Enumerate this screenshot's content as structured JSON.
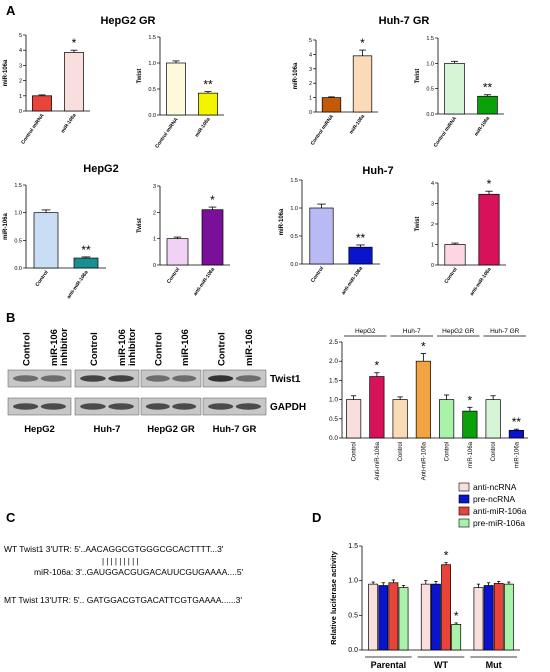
{
  "panel_letters": {
    "A": "A",
    "B": "B",
    "C": "C",
    "D": "D"
  },
  "group_titles": {
    "hepg2_gr": "HepG2 GR",
    "huh7_gr": "Huh-7 GR",
    "hepg2": "HepG2",
    "huh7": "Huh-7"
  },
  "colors": {
    "red": "#e8443a",
    "pink": "#f9dede",
    "cream": "#fcf9dc",
    "yellow": "#f3f300",
    "brown": "#c35a07",
    "peach": "#fbdab8",
    "mint": "#d6f5d6",
    "green": "#0aa10a",
    "lightblue": "#c9def4",
    "teal": "#1a8f92",
    "lavender": "#f1d2f5",
    "purple": "#7a0f9a",
    "periwinkle": "#b9b9f4",
    "blue": "#0a14cc",
    "rose": "#fcd6e2",
    "crimson": "#d8125a",
    "orange": "#f2a442",
    "lightgreen": "#a9f2a9",
    "blot_bg": "#c7c7c7"
  },
  "blot": {
    "lanes": [
      {
        "group": "HepG2",
        "labels": [
          "Control",
          "miR-106 inhibitor"
        ]
      },
      {
        "group": "Huh-7",
        "labels": [
          "Control",
          "miR-106 inhibitor"
        ]
      },
      {
        "group": "HepG2 GR",
        "labels": [
          "Control",
          "miR-106"
        ]
      },
      {
        "group": "Huh-7 GR",
        "labels": [
          "Control",
          "miR-106"
        ]
      }
    ],
    "bands": [
      "Twist1",
      "GAPDH"
    ]
  },
  "seq": {
    "lines": [
      "WT Twist1 3'UTR:  5'..AACAGGCGTGGGCGCACTTTT...3'",
      "miR-106a:  3'..GAUGGACGUGACAUUCGUGAAAA....5'",
      "MT Twist 13'UTR: 5'.. GATGGACGTGACATTCGTGAAAA......3'"
    ],
    "pairing": "| |      | | | | | | |"
  },
  "chart_data": [
    {
      "type": "bar",
      "title": "",
      "group": "HepG2 GR",
      "categories": [
        "Control miRNA",
        "miR-106a"
      ],
      "values": [
        1.0,
        3.85
      ],
      "errors": [
        0.06,
        0.15
      ],
      "sig": [
        "",
        "*"
      ],
      "ylabel": "miR-106a",
      "ylim": [
        0,
        5
      ],
      "yticks": [
        0,
        1,
        2,
        3,
        4,
        5
      ],
      "colors": [
        "red",
        "pink"
      ]
    },
    {
      "type": "bar",
      "title": "",
      "group": "HepG2 GR",
      "categories": [
        "Control miRNA",
        "miR-106a"
      ],
      "values": [
        1.0,
        0.42
      ],
      "errors": [
        0.04,
        0.03
      ],
      "sig": [
        "",
        "**"
      ],
      "ylabel": "Twist",
      "ylim": [
        0,
        1.5
      ],
      "yticks": [
        0.0,
        0.5,
        1.0,
        1.5
      ],
      "colors": [
        "cream",
        "yellow"
      ]
    },
    {
      "type": "bar",
      "title": "",
      "group": "Huh-7 GR",
      "categories": [
        "Control miRNA",
        "miR-106a"
      ],
      "values": [
        1.0,
        3.9
      ],
      "errors": [
        0.05,
        0.4
      ],
      "sig": [
        "",
        "*"
      ],
      "ylabel": "miR-106a",
      "ylim": [
        0,
        5
      ],
      "yticks": [
        0,
        1,
        2,
        3,
        4,
        5
      ],
      "colors": [
        "brown",
        "peach"
      ]
    },
    {
      "type": "bar",
      "title": "",
      "group": "Huh-7 GR",
      "categories": [
        "Control miRNA",
        "miR-106a"
      ],
      "values": [
        1.0,
        0.35
      ],
      "errors": [
        0.04,
        0.03
      ],
      "sig": [
        "",
        "**"
      ],
      "ylabel": "Twist",
      "ylim": [
        0,
        1.5
      ],
      "yticks": [
        0.0,
        0.5,
        1.0,
        1.5
      ],
      "colors": [
        "mint",
        "green"
      ]
    },
    {
      "type": "bar",
      "title": "",
      "group": "HepG2",
      "categories": [
        "Control",
        "anti-miR-106a"
      ],
      "values": [
        1.0,
        0.18
      ],
      "errors": [
        0.05,
        0.02
      ],
      "sig": [
        "",
        "**"
      ],
      "ylabel": "miR-106a",
      "ylim": [
        0,
        1.5
      ],
      "yticks": [
        0.0,
        0.5,
        1.0,
        1.5
      ],
      "colors": [
        "lightblue",
        "teal"
      ]
    },
    {
      "type": "bar",
      "title": "",
      "group": "HepG2",
      "categories": [
        "Control",
        "anti-miR-106a"
      ],
      "values": [
        1.0,
        2.1
      ],
      "errors": [
        0.06,
        0.1
      ],
      "sig": [
        "",
        "*"
      ],
      "ylabel": "Twist",
      "ylim": [
        0,
        3
      ],
      "yticks": [
        0,
        1,
        2,
        3
      ],
      "colors": [
        "lavender",
        "purple"
      ]
    },
    {
      "type": "bar",
      "title": "",
      "group": "Huh-7",
      "categories": [
        "Control",
        "anti-miR-106a"
      ],
      "values": [
        1.0,
        0.3
      ],
      "errors": [
        0.07,
        0.04
      ],
      "sig": [
        "",
        "**"
      ],
      "ylabel": "miR-106a",
      "ylim": [
        0,
        1.5
      ],
      "yticks": [
        0.0,
        0.5,
        1.0,
        1.5
      ],
      "colors": [
        "periwinkle",
        "blue"
      ]
    },
    {
      "type": "bar",
      "title": "",
      "group": "Huh-7",
      "categories": [
        "Control",
        "anti-miR-106a"
      ],
      "values": [
        1.0,
        3.45
      ],
      "errors": [
        0.07,
        0.15
      ],
      "sig": [
        "",
        "*"
      ],
      "ylabel": "Twist",
      "ylim": [
        0,
        4
      ],
      "yticks": [
        0,
        1,
        2,
        3,
        4
      ],
      "colors": [
        "rose",
        "crimson"
      ]
    },
    {
      "type": "bar",
      "title": "",
      "ylabel": "",
      "ylim": [
        0,
        2.5
      ],
      "yticks": [
        0.0,
        0.5,
        1.0,
        1.5,
        2.0,
        2.5
      ],
      "groups": [
        "HepG2",
        "Huh-7",
        "HepG2 GR",
        "Huh-7 GR"
      ],
      "categories": [
        "Control",
        "Anti-miR-106a",
        "Control",
        "Anti-miR-106a",
        "Control",
        "miR-106a",
        "Control",
        "miR-106a"
      ],
      "values": [
        1.0,
        1.6,
        1.0,
        2.0,
        1.0,
        0.7,
        1.0,
        0.2
      ],
      "errors": [
        0.1,
        0.1,
        0.07,
        0.2,
        0.12,
        0.1,
        0.1,
        0.03
      ],
      "sig": [
        "",
        "*",
        "",
        "*",
        "",
        "*",
        "",
        "**"
      ],
      "colors": [
        "pink",
        "crimson",
        "peach",
        "orange",
        "lightgreen",
        "green",
        "mint",
        "blue"
      ]
    },
    {
      "type": "bar",
      "title": "",
      "ylabel": "Relative luciferase activity",
      "ylim": [
        0.0,
        1.5
      ],
      "yticks": [
        0.0,
        0.5,
        1.0,
        1.5
      ],
      "groups": [
        "Parental",
        "WT",
        "Mut"
      ],
      "series": [
        {
          "name": "anti-ncRNA",
          "values": [
            0.95,
            0.95,
            0.9
          ],
          "errors": [
            0.03,
            0.05,
            0.05
          ],
          "sig": [
            "",
            "",
            ""
          ],
          "color": "pink"
        },
        {
          "name": "pre-ncRNA",
          "values": [
            0.93,
            0.95,
            0.93
          ],
          "errors": [
            0.04,
            0.04,
            0.04
          ],
          "sig": [
            "",
            "",
            ""
          ],
          "color": "blue"
        },
        {
          "name": "anti-miR-106a",
          "values": [
            0.97,
            1.23,
            0.96
          ],
          "errors": [
            0.04,
            0.03,
            0.03
          ],
          "sig": [
            "",
            "*",
            ""
          ],
          "color": "red"
        },
        {
          "name": "pre-miR-106a",
          "values": [
            0.9,
            0.37,
            0.95
          ],
          "errors": [
            0.03,
            0.02,
            0.03
          ],
          "sig": [
            "",
            "*",
            ""
          ],
          "color": "lightgreen"
        }
      ]
    }
  ]
}
